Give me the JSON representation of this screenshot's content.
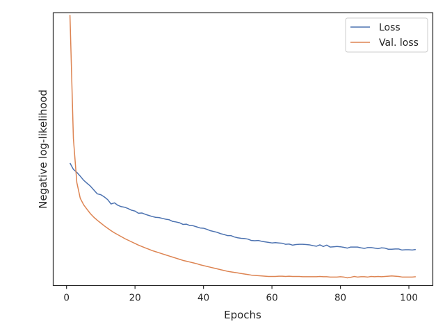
{
  "chart_data": {
    "type": "line",
    "title": "",
    "xlabel": "Epochs",
    "ylabel": "Negative log-likelihood",
    "xlim": [
      -3.9,
      107
    ],
    "ylim": [
      0,
      1
    ],
    "x_ticks": [
      0,
      20,
      40,
      60,
      80,
      100
    ],
    "y_ticks_shown": false,
    "grid": false,
    "legend_position": "top-right",
    "series": [
      {
        "name": "Loss",
        "color": "#4c72b0",
        "x": [
          1,
          2,
          3,
          4,
          5,
          6,
          7,
          8,
          9,
          10,
          11,
          12,
          13,
          14,
          15,
          16,
          17,
          18,
          19,
          20,
          21,
          22,
          23,
          24,
          25,
          26,
          27,
          28,
          29,
          30,
          31,
          32,
          33,
          34,
          35,
          36,
          37,
          38,
          39,
          40,
          41,
          42,
          43,
          44,
          45,
          46,
          47,
          48,
          49,
          50,
          51,
          52,
          53,
          54,
          55,
          56,
          57,
          58,
          59,
          60,
          61,
          62,
          63,
          64,
          65,
          66,
          67,
          68,
          69,
          70,
          71,
          72,
          73,
          74,
          75,
          76,
          77,
          78,
          79,
          80,
          81,
          82,
          83,
          84,
          85,
          86,
          87,
          88,
          89,
          90,
          91,
          92,
          93,
          94,
          95,
          96,
          97,
          98,
          99,
          100,
          101,
          102
        ],
        "y": [
          0.449,
          0.426,
          0.415,
          0.401,
          0.386,
          0.375,
          0.364,
          0.35,
          0.336,
          0.333,
          0.325,
          0.315,
          0.299,
          0.303,
          0.294,
          0.289,
          0.287,
          0.282,
          0.276,
          0.273,
          0.265,
          0.266,
          0.261,
          0.257,
          0.253,
          0.25,
          0.249,
          0.246,
          0.243,
          0.241,
          0.235,
          0.233,
          0.23,
          0.224,
          0.225,
          0.22,
          0.219,
          0.215,
          0.211,
          0.21,
          0.206,
          0.201,
          0.198,
          0.195,
          0.19,
          0.187,
          0.183,
          0.183,
          0.178,
          0.175,
          0.173,
          0.172,
          0.17,
          0.165,
          0.164,
          0.165,
          0.162,
          0.16,
          0.158,
          0.156,
          0.157,
          0.156,
          0.155,
          0.151,
          0.152,
          0.148,
          0.15,
          0.151,
          0.151,
          0.15,
          0.149,
          0.146,
          0.144,
          0.149,
          0.143,
          0.148,
          0.141,
          0.142,
          0.143,
          0.142,
          0.14,
          0.137,
          0.141,
          0.141,
          0.141,
          0.138,
          0.136,
          0.139,
          0.139,
          0.137,
          0.135,
          0.138,
          0.137,
          0.133,
          0.133,
          0.134,
          0.134,
          0.13,
          0.131,
          0.131,
          0.13,
          0.132
        ]
      },
      {
        "name": "Val. loss",
        "color": "#dd8452",
        "x": [
          1,
          2,
          3,
          4,
          5,
          6,
          7,
          8,
          9,
          10,
          11,
          12,
          13,
          14,
          15,
          16,
          17,
          18,
          19,
          20,
          21,
          22,
          23,
          24,
          25,
          26,
          27,
          28,
          29,
          30,
          31,
          32,
          33,
          34,
          35,
          36,
          37,
          38,
          39,
          40,
          41,
          42,
          43,
          44,
          45,
          46,
          47,
          48,
          49,
          50,
          51,
          52,
          53,
          54,
          55,
          56,
          57,
          58,
          59,
          60,
          61,
          62,
          63,
          64,
          65,
          66,
          67,
          68,
          69,
          70,
          71,
          72,
          73,
          74,
          75,
          76,
          77,
          78,
          79,
          80,
          81,
          82,
          83,
          84,
          85,
          86,
          87,
          88,
          89,
          90,
          91,
          92,
          93,
          94,
          95,
          96,
          97,
          98,
          99,
          100,
          101,
          102
        ],
        "y": [
          0.992,
          0.539,
          0.378,
          0.32,
          0.296,
          0.279,
          0.263,
          0.25,
          0.239,
          0.229,
          0.219,
          0.21,
          0.201,
          0.193,
          0.186,
          0.179,
          0.172,
          0.166,
          0.16,
          0.154,
          0.148,
          0.143,
          0.138,
          0.133,
          0.128,
          0.124,
          0.12,
          0.116,
          0.112,
          0.108,
          0.104,
          0.1,
          0.096,
          0.092,
          0.089,
          0.086,
          0.083,
          0.08,
          0.076,
          0.073,
          0.07,
          0.067,
          0.064,
          0.061,
          0.058,
          0.055,
          0.052,
          0.05,
          0.048,
          0.046,
          0.044,
          0.042,
          0.04,
          0.038,
          0.037,
          0.036,
          0.035,
          0.034,
          0.033,
          0.033,
          0.033,
          0.034,
          0.034,
          0.033,
          0.034,
          0.033,
          0.033,
          0.033,
          0.032,
          0.032,
          0.032,
          0.032,
          0.032,
          0.033,
          0.032,
          0.032,
          0.031,
          0.031,
          0.031,
          0.032,
          0.031,
          0.028,
          0.03,
          0.033,
          0.031,
          0.032,
          0.032,
          0.031,
          0.033,
          0.032,
          0.033,
          0.032,
          0.033,
          0.034,
          0.035,
          0.034,
          0.033,
          0.031,
          0.031,
          0.031,
          0.031,
          0.032
        ]
      }
    ]
  }
}
